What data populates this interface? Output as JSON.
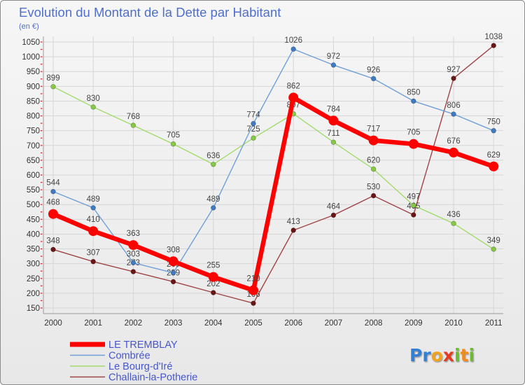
{
  "chart_data": {
    "type": "line",
    "title": "Evolution du Montant de la Dette par Habitant",
    "subtitle": "(en €)",
    "x": [
      "2000",
      "2001",
      "2002",
      "2003",
      "2004",
      "2005",
      "2006",
      "2007",
      "2008",
      "2009",
      "2010",
      "2011"
    ],
    "ylim": [
      150,
      1050
    ],
    "yticks": [
      150,
      200,
      250,
      300,
      350,
      400,
      450,
      500,
      550,
      600,
      650,
      700,
      750,
      800,
      850,
      900,
      950,
      1000,
      1050
    ],
    "grid": true,
    "legend_position": "bottom-left",
    "series": [
      {
        "name": "LE TREMBLAY",
        "color": "#ff0000",
        "marker_color": "#ff0000",
        "values": [
          468,
          410,
          363,
          308,
          255,
          210,
          862,
          784,
          717,
          705,
          676,
          629
        ]
      },
      {
        "name": "Combrée",
        "color": "#6f9fd6",
        "marker_color": "#3e7bc4",
        "values": [
          544,
          489,
          303,
          269,
          489,
          774,
          1026,
          972,
          926,
          850,
          806,
          750
        ]
      },
      {
        "name": "Le Bourg-d'Iré",
        "color": "#a3db6c",
        "marker_color": "#86c943",
        "values": [
          899,
          830,
          768,
          705,
          636,
          725,
          807,
          711,
          620,
          497,
          436,
          349
        ]
      },
      {
        "name": "Challain-la-Potherie",
        "color": "#a04545",
        "marker_color": "#6b1515",
        "values": [
          348,
          307,
          273,
          239,
          202,
          166,
          413,
          464,
          530,
          465,
          927,
          1038
        ]
      }
    ]
  },
  "logo": {
    "text": "Proxiti",
    "letter_colors": [
      "#3380d6",
      "#3380d6",
      "#f2a21c",
      "#e23b22",
      "#6dbb2e",
      "#ef8a1c",
      "#6dbb2e"
    ]
  }
}
